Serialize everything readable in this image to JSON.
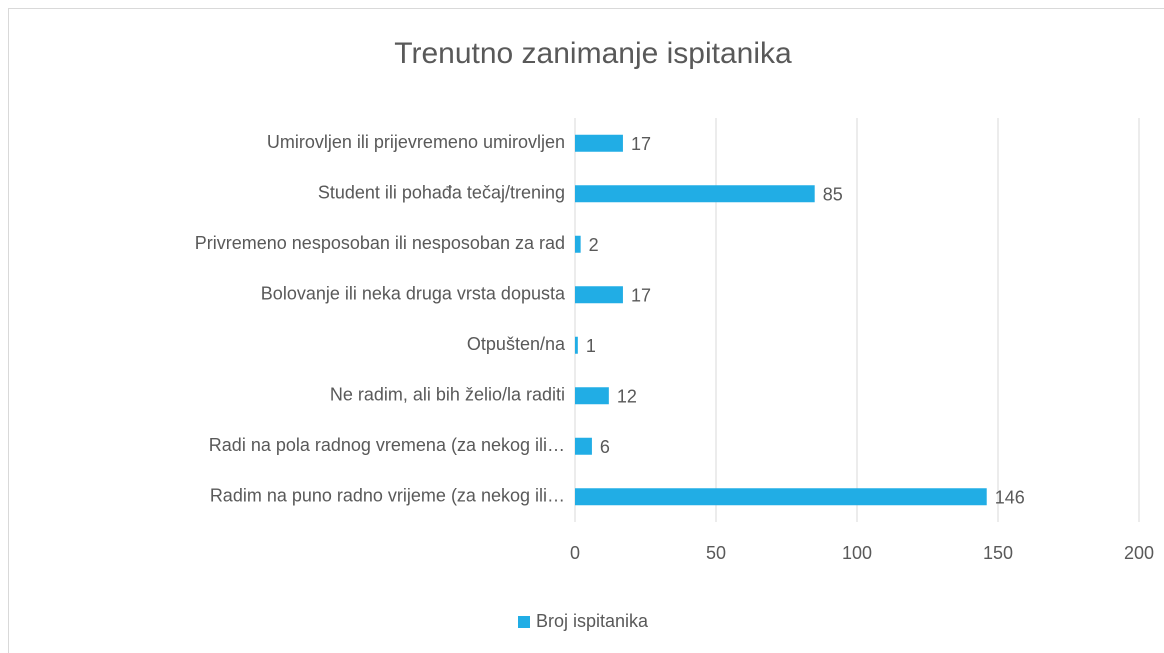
{
  "chart_data": {
    "type": "bar",
    "orientation": "horizontal",
    "title": "Trenutno zanimanje ispitanika",
    "categories": [
      "Umirovljen ili prijevremeno umirovljen",
      "Student ili pohađa tečaj/trening",
      "Privremeno nesposoban ili nesposoban za rad",
      "Bolovanje ili neka druga vrsta dopusta",
      "Otpušten/na",
      "Ne radim, ali bih želio/la raditi",
      "Radi na pola radnog vremena (za nekog ili…",
      "Radim na puno radno vrijeme (za nekog ili…"
    ],
    "series": [
      {
        "name": "Broj ispitanika",
        "color": "#21ade5",
        "values": [
          17,
          85,
          2,
          17,
          1,
          12,
          6,
          146
        ]
      }
    ],
    "xlim": [
      0,
      200
    ],
    "xticks": [
      0,
      50,
      100,
      150,
      200
    ],
    "grid": true,
    "legend": "bottom"
  }
}
